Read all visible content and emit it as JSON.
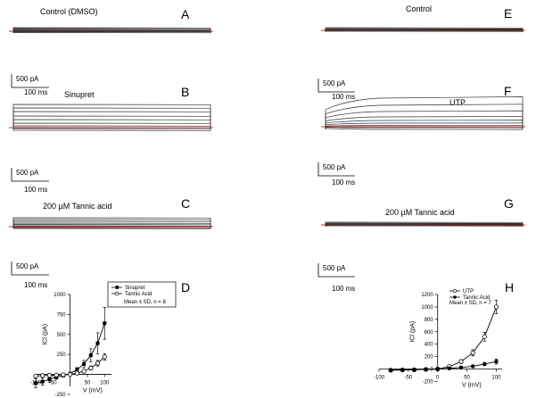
{
  "panels": {
    "A": {
      "letter": "A",
      "label": "Control (DMSO)"
    },
    "B": {
      "letter": "B",
      "label": "Sinupret"
    },
    "C": {
      "letter": "C",
      "label": "200 µM Tannic acid"
    },
    "E": {
      "letter": "E",
      "label": "Control"
    },
    "F": {
      "letter": "F",
      "label": "UTP"
    },
    "G": {
      "letter": "G",
      "label": "200 µM Tannic acid"
    },
    "D": {
      "letter": "D"
    },
    "H": {
      "letter": "H"
    }
  },
  "scale_bar": {
    "current": "500 pA",
    "time": "100 ms"
  },
  "trace_colors": {
    "trace": "#333333",
    "zero_line": "#e02020"
  },
  "chart_data": [
    {
      "panel": "D",
      "type": "line",
      "xlabel": "V (mV)",
      "ylabel": "ICl (pA)",
      "xlim": [
        -100,
        120
      ],
      "ylim": [
        -150,
        1000
      ],
      "xticks": [
        -100,
        -50,
        50,
        100
      ],
      "yticks": [
        -250,
        250,
        500,
        750,
        1000
      ],
      "ytick_labels": [
        "-250",
        "250",
        "500",
        "750",
        "1000"
      ],
      "annotation": "Mean ± SD, n = 8",
      "series": [
        {
          "name": "Sinupret",
          "marker": "filled-square",
          "x": [
            -100,
            -80,
            -60,
            -40,
            -20,
            0,
            20,
            40,
            60,
            80,
            100
          ],
          "y": [
            -110,
            -90,
            -60,
            -35,
            -15,
            10,
            60,
            130,
            240,
            390,
            640
          ],
          "err": [
            55,
            45,
            35,
            25,
            15,
            10,
            25,
            45,
            80,
            130,
            200
          ]
        },
        {
          "name": "Tannic Acid",
          "marker": "open-circle",
          "x": [
            -100,
            -80,
            -60,
            -40,
            -20,
            0,
            20,
            40,
            60,
            80,
            100
          ],
          "y": [
            -20,
            -15,
            -12,
            -8,
            -4,
            0,
            15,
            40,
            80,
            140,
            220
          ],
          "err": [
            15,
            12,
            10,
            8,
            5,
            4,
            8,
            15,
            25,
            35,
            40
          ]
        }
      ]
    },
    {
      "panel": "H",
      "type": "line",
      "xlabel": "V (mV)",
      "ylabel": "ICl (pA)",
      "xlim": [
        -100,
        110
      ],
      "ylim": [
        -50,
        1200
      ],
      "xticks": [
        -100,
        -50,
        0,
        50,
        100
      ],
      "yticks": [
        -200,
        0,
        200,
        400,
        600,
        800,
        1000,
        1200
      ],
      "ytick_labels": [
        "-200",
        "0",
        "200",
        "400",
        "600",
        "800",
        "1000",
        "1200"
      ],
      "annotation": "Mean ± SD, n = 7",
      "series": [
        {
          "name": "UTP",
          "marker": "open-circle",
          "x": [
            -80,
            -60,
            -40,
            -20,
            0,
            20,
            40,
            60,
            80,
            100
          ],
          "y": [
            -20,
            -15,
            -12,
            -6,
            0,
            40,
            120,
            260,
            520,
            1000
          ],
          "err": [
            10,
            8,
            8,
            6,
            4,
            15,
            30,
            50,
            70,
            110
          ]
        },
        {
          "name": "Tannic Acid",
          "marker": "filled-circle",
          "x": [
            -80,
            -60,
            -40,
            -20,
            0,
            20,
            40,
            60,
            80,
            100
          ],
          "y": [
            -15,
            -12,
            -10,
            -6,
            0,
            10,
            25,
            45,
            80,
            120
          ],
          "err": [
            6,
            5,
            5,
            4,
            3,
            5,
            10,
            15,
            25,
            40
          ]
        }
      ]
    }
  ]
}
